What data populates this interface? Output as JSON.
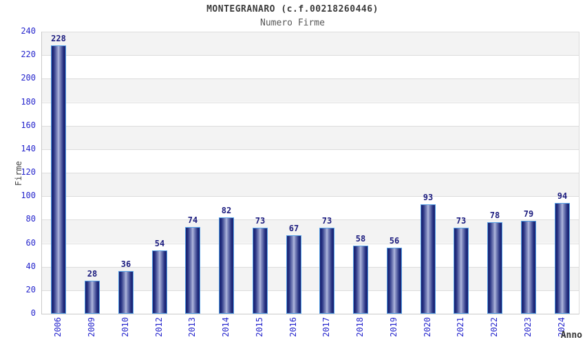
{
  "title": "MONTEGRANARO (c.f.00218260446)",
  "subtitle": "Numero Firme",
  "chart_data": {
    "type": "bar",
    "title": "MONTEGRANARO (c.f.00218260446)",
    "subtitle": "Numero Firme",
    "xlabel": "Anno",
    "ylabel": "Firme",
    "categories": [
      "2006",
      "2009",
      "2010",
      "2012",
      "2013",
      "2014",
      "2015",
      "2016",
      "2017",
      "2018",
      "2019",
      "2020",
      "2021",
      "2022",
      "2023",
      "2024"
    ],
    "values": [
      228,
      28,
      36,
      54,
      74,
      82,
      73,
      67,
      73,
      58,
      56,
      93,
      73,
      78,
      79,
      94
    ],
    "ylim": [
      0,
      240
    ],
    "yticks": [
      0,
      20,
      40,
      60,
      80,
      100,
      120,
      140,
      160,
      180,
      200,
      220,
      240
    ],
    "legend": "none",
    "grid": "horizontal-bands",
    "colors": {
      "bar_dark": "#17206f",
      "bar_mid": "#242f80",
      "bar_light": "#b5bcdf",
      "bar_border": "#55a0e6",
      "value_label": "#1b1b7e",
      "tick_label": "#2424cc",
      "band_gray": "#f3f3f3",
      "band_white": "#ffffff",
      "gridline": "#dcdcdc",
      "title_color": "#3b3b3b",
      "subtitle_color": "#565656",
      "axis_title_color": "#333333"
    }
  }
}
